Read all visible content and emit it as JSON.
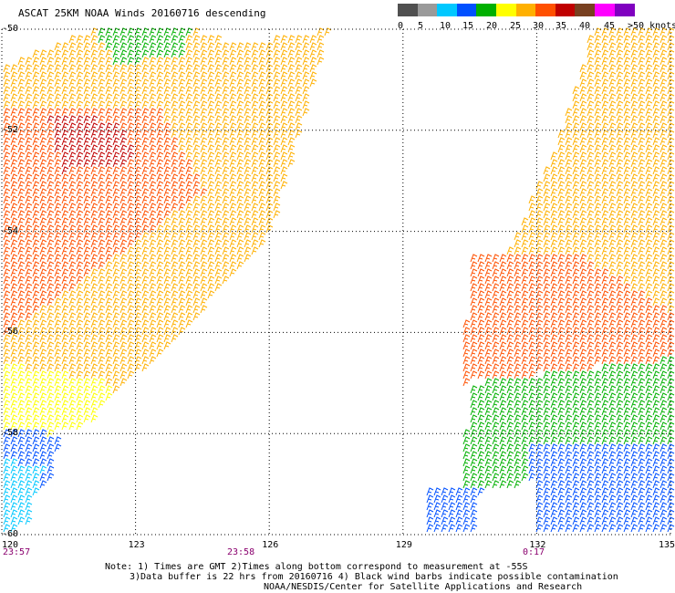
{
  "title": "ASCAT 25KM NOAA Winds 20160716 descending",
  "legend": {
    "labels": [
      "0",
      "5",
      "10",
      "15",
      "20",
      "25",
      "30",
      "35",
      "40",
      "45",
      ">50 knots"
    ],
    "colors": [
      "#505050",
      "#9a9a9a",
      "#00c8ff",
      "#0050ff",
      "#00b000",
      "#ffff00",
      "#ffb000",
      "#ff5000",
      "#c00000",
      "#784020",
      "#ff00ff",
      "#8000c0"
    ]
  },
  "map": {
    "lat_labels": [
      "-50",
      "-52",
      "-54",
      "-56",
      "-58",
      "-60"
    ],
    "lon_labels": [
      "120",
      "123",
      "126",
      "129",
      "132",
      "135"
    ],
    "time_labels": [
      "23:57",
      "23:58",
      "0:17"
    ]
  },
  "notes": {
    "line1": "Note: 1) Times are GMT 2)Times along bottom correspond to measurement at -55S",
    "line2": "3)Data buffer is 22 hrs from 20160716 4) Black wind barbs indicate possible contamination",
    "line3": "NOAA/NESDIS/Center for Satellite Applications and Research"
  },
  "chart_data": {
    "type": "scatter",
    "title": "ASCAT 25KM NOAA Winds 20160716 descending",
    "xlabel": "",
    "ylabel": "",
    "x_ticks": [
      120,
      123,
      126,
      129,
      132,
      135
    ],
    "y_ticks": [
      -50,
      -52,
      -54,
      -56,
      -58,
      -60
    ],
    "xlim": [
      120,
      135
    ],
    "ylim": [
      -60,
      -50
    ],
    "grid": true,
    "legend_units": "knots",
    "swath_regions": [
      {
        "name": "west_swath_upper",
        "polygon": [
          [
            120,
            -50.7
          ],
          [
            122.0,
            -50.0
          ],
          [
            124.2,
            -50.0
          ],
          [
            125.2,
            -50.3
          ],
          [
            127.3,
            -50.0
          ],
          [
            126.0,
            -54.0
          ],
          [
            124.0,
            -56.0
          ],
          [
            122.0,
            -57.6
          ],
          [
            120,
            -58.0
          ]
        ],
        "speed_knots": 28
      },
      {
        "name": "west_swath_north_edge",
        "polygon": [
          [
            122.0,
            -50.0
          ],
          [
            124.2,
            -50.0
          ],
          [
            124.0,
            -50.5
          ],
          [
            122.5,
            -50.7
          ]
        ],
        "speed_knots": 17
      },
      {
        "name": "west_swath_core",
        "polygon": [
          [
            120,
            -51.5
          ],
          [
            123.5,
            -51.6
          ],
          [
            124.5,
            -53.2
          ],
          [
            122.0,
            -54.8
          ],
          [
            120,
            -56.0
          ]
        ],
        "speed_knots": 33
      },
      {
        "name": "west_swath_peak",
        "polygon": [
          [
            121.0,
            -51.7
          ],
          [
            122.5,
            -51.8
          ],
          [
            123.0,
            -52.6
          ],
          [
            121.3,
            -52.8
          ]
        ],
        "speed_knots": 37
      },
      {
        "name": "west_swath_south_edge",
        "polygon": [
          [
            120,
            -56.6
          ],
          [
            122.5,
            -57.0
          ],
          [
            122.0,
            -57.8
          ],
          [
            120,
            -58.2
          ]
        ],
        "speed_knots": 22
      },
      {
        "name": "west_swath_low",
        "polygon": [
          [
            120,
            -57.9
          ],
          [
            121.3,
            -58.0
          ],
          [
            121.0,
            -59.0
          ],
          [
            120,
            -59.2
          ]
        ],
        "speed_knots": 12
      },
      {
        "name": "west_swath_weak",
        "polygon": [
          [
            120,
            -58.5
          ],
          [
            120.9,
            -58.7
          ],
          [
            120.5,
            -59.8
          ],
          [
            120,
            -59.9
          ]
        ],
        "speed_knots": 7
      },
      {
        "name": "east_swath_upper",
        "polygon": [
          [
            133.2,
            -50.0
          ],
          [
            135,
            -50.0
          ],
          [
            135,
            -56.2
          ],
          [
            130.3,
            -56.8
          ],
          [
            131.0,
            -55.0
          ],
          [
            132.5,
            -52.0
          ]
        ],
        "speed_knots": 25
      },
      {
        "name": "east_swath_middle",
        "polygon": [
          [
            130.5,
            -54.5
          ],
          [
            133.0,
            -54.5
          ],
          [
            135,
            -55.6
          ],
          [
            135,
            -56.5
          ],
          [
            130.2,
            -57.0
          ]
        ],
        "speed_knots": 30
      },
      {
        "name": "east_swath_lower",
        "polygon": [
          [
            130.5,
            -57.0
          ],
          [
            135,
            -56.5
          ],
          [
            135,
            -58.2
          ],
          [
            131.5,
            -59.0
          ],
          [
            130.2,
            -59.0
          ]
        ],
        "speed_knots": 17
      },
      {
        "name": "east_swath_bottom",
        "polygon": [
          [
            131.7,
            -58.2
          ],
          [
            135,
            -58.2
          ],
          [
            135,
            -60.0
          ],
          [
            132.0,
            -60.0
          ]
        ],
        "speed_knots": 12
      },
      {
        "name": "east_swath_tail",
        "polygon": [
          [
            129.5,
            -59.0
          ],
          [
            130.7,
            -59.0
          ],
          [
            130.6,
            -60.0
          ],
          [
            129.4,
            -60.0
          ]
        ],
        "speed_knots": 12
      }
    ]
  }
}
